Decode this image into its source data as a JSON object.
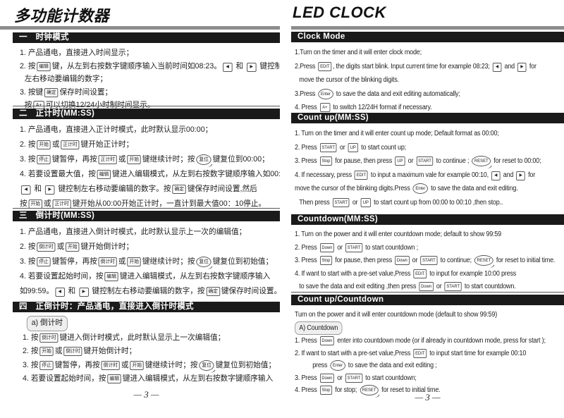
{
  "colors": {
    "header_bar": "#1a1a1a",
    "title_rule": "#8d8d8d",
    "text": "#1e1e1e"
  },
  "left": {
    "title": "多功能计数器",
    "footer": "— 3 —",
    "sections": [
      {
        "header": "一　时钟模式",
        "lines": [
          {
            "segs": [
              {
                "t": "1. 产品通电，直接进入时间显示；"
              }
            ]
          },
          {
            "segs": [
              {
                "t": "2. 按"
              },
              {
                "k": "编辑",
                "n": "key-edit"
              },
              {
                "t": "键，从左到右按数字键顺序输入当前时间如08:23。"
              },
              {
                "k": "◀",
                "n": "key-left",
                "s": "arrow"
              },
              {
                "t": " 和 "
              },
              {
                "k": "▶",
                "n": "key-right",
                "s": "arrow"
              },
              {
                "t": " 键控制"
              }
            ]
          },
          {
            "indent": 1,
            "segs": [
              {
                "t": "左右移动要编辑的数字；"
              }
            ]
          },
          {
            "segs": [
              {
                "t": "3. 按键"
              },
              {
                "k": "确定",
                "n": "key-ok"
              },
              {
                "t": "保存时间设置；"
              }
            ]
          },
          {
            "indent": 1,
            "segs": [
              {
                "t": "按"
              },
              {
                "k": "A+",
                "n": "key-a-plus"
              },
              {
                "t": "可以切换12/24小时制时间显示。"
              }
            ]
          }
        ]
      },
      {
        "header": "二　正计时(MM:SS)",
        "lines": [
          {
            "segs": [
              {
                "t": "1. 产品通电，直接进入正计时模式，此时默认显示00:00；"
              }
            ]
          },
          {
            "segs": [
              {
                "t": "2. 按"
              },
              {
                "k": "开始",
                "n": "key-start"
              },
              {
                "t": "或"
              },
              {
                "k": "正计时",
                "n": "key-count-up"
              },
              {
                "t": "键开始正计时；"
              }
            ]
          },
          {
            "segs": [
              {
                "t": "3. 按"
              },
              {
                "k": "停止",
                "n": "key-stop"
              },
              {
                "t": "键暂停，再按"
              },
              {
                "k": "正计时",
                "n": "key-count-up"
              },
              {
                "t": "或"
              },
              {
                "k": "开始",
                "n": "key-start"
              },
              {
                "t": "键继续计时；按"
              },
              {
                "k": "复位",
                "n": "key-reset",
                "s": "reset"
              },
              {
                "t": "键复位到00:00；"
              }
            ]
          },
          {
            "segs": [
              {
                "t": "4. 若要设置最大值，按"
              },
              {
                "k": "编辑",
                "n": "key-edit"
              },
              {
                "t": "键进入编辑模式，从左到右按数字键顺序输入如00:10。"
              }
            ]
          },
          {
            "segs": [
              {
                "k": "◀",
                "n": "key-left",
                "s": "arrow"
              },
              {
                "t": " 和 "
              },
              {
                "k": "▶",
                "n": "key-right",
                "s": "arrow"
              },
              {
                "t": " 键控制左右移动要编辑的数字。按"
              },
              {
                "k": "确定",
                "n": "key-ok"
              },
              {
                "t": "键保存时间设置,然后"
              }
            ]
          },
          {
            "segs": [
              {
                "t": "按"
              },
              {
                "k": "开始",
                "n": "key-start"
              },
              {
                "t": "或"
              },
              {
                "k": "正计时",
                "n": "key-count-up"
              },
              {
                "t": "键开始从00:00开始正计时，一直计到最大值00：10停止。"
              }
            ]
          }
        ]
      },
      {
        "header": "三　倒计时(MM:SS)",
        "lines": [
          {
            "segs": [
              {
                "t": "1. 产品通电，直接进入倒计时模式，此时默认显示上一次的编辑值；"
              }
            ]
          },
          {
            "segs": [
              {
                "t": "2. 按"
              },
              {
                "k": "倒计时",
                "n": "key-countdown"
              },
              {
                "t": "或"
              },
              {
                "k": "开始",
                "n": "key-start"
              },
              {
                "t": "键开始倒计时；"
              }
            ]
          },
          {
            "segs": [
              {
                "t": "3. 按"
              },
              {
                "k": "停止",
                "n": "key-stop"
              },
              {
                "t": "键暂停，再按"
              },
              {
                "k": "倒计时",
                "n": "key-countdown"
              },
              {
                "t": "或"
              },
              {
                "k": "开始",
                "n": "key-start"
              },
              {
                "t": "键继续计时；按"
              },
              {
                "k": "复位",
                "n": "key-reset",
                "s": "reset"
              },
              {
                "t": "键复位到初始值；"
              }
            ]
          },
          {
            "segs": [
              {
                "t": "4. 若要设置起始时间，按"
              },
              {
                "k": "编辑",
                "n": "key-edit"
              },
              {
                "t": "键进入编辑模式，从左到右按数字键顺序输入"
              }
            ]
          },
          {
            "segs": [
              {
                "t": "如99:59。"
              },
              {
                "k": "◀",
                "n": "key-left",
                "s": "arrow"
              },
              {
                "t": " 和 "
              },
              {
                "k": "▶",
                "n": "key-right",
                "s": "arrow"
              },
              {
                "t": " 键控制左右移动要编辑的数字，按"
              },
              {
                "k": "确定",
                "n": "key-ok"
              },
              {
                "t": "键保存时间设置。"
              }
            ]
          }
        ]
      },
      {
        "header": "四　正倒计时：产品通电，直接进入倒计时模式",
        "lines": [
          {
            "sub": "a) 倒计时"
          },
          {
            "segs": [
              {
                "t": "1. 按"
              },
              {
                "k": "倒计时",
                "n": "key-countdown"
              },
              {
                "t": "键进入倒计时模式，此时默认显示上一次编辑值；"
              }
            ]
          },
          {
            "segs": [
              {
                "t": "2. 按"
              },
              {
                "k": "开始",
                "n": "key-start"
              },
              {
                "t": "或"
              },
              {
                "k": "倒计时",
                "n": "key-countdown"
              },
              {
                "t": "键开始倒计时；"
              }
            ]
          },
          {
            "segs": [
              {
                "t": "3. 按"
              },
              {
                "k": "停止",
                "n": "key-stop"
              },
              {
                "t": "键暂停，再按"
              },
              {
                "k": "倒计时",
                "n": "key-countdown"
              },
              {
                "t": "或"
              },
              {
                "k": "开始",
                "n": "key-start"
              },
              {
                "t": "键继续计时；按"
              },
              {
                "k": "复位",
                "n": "key-reset",
                "s": "reset"
              },
              {
                "t": "键复位到初始值；"
              }
            ]
          },
          {
            "segs": [
              {
                "t": "4.  若要设置起始时间，按"
              },
              {
                "k": "编辑",
                "n": "key-edit"
              },
              {
                "t": "键进入编辑模式，从左到右按数字键顺序输入"
              }
            ]
          }
        ]
      }
    ]
  },
  "right": {
    "title": "LED CLOCK",
    "footer": "— 3 —",
    "sections": [
      {
        "header": "Clock Mode",
        "lines": [
          {
            "segs": [
              {
                "t": "1.Turn on the timer and it will enter clock mode;"
              }
            ]
          },
          {
            "segs": [
              {
                "t": "2.Press "
              },
              {
                "k": "EDIT",
                "n": "key-edit"
              },
              {
                "t": ", the digits start blink. Input current time for example 08:23; "
              },
              {
                "k": "◀",
                "n": "key-left",
                "s": "arrow"
              },
              {
                "t": " and "
              },
              {
                "k": "▶",
                "n": "key-right",
                "s": "arrow"
              },
              {
                "t": " for"
              }
            ]
          },
          {
            "indent": 1,
            "segs": [
              {
                "t": "move the cursor of the blinking digits."
              }
            ]
          },
          {
            "segs": [
              {
                "t": "3.Press "
              },
              {
                "k": "Enter",
                "n": "key-enter",
                "s": "oval"
              },
              {
                "t": " to save the data and exit editing automatically;"
              }
            ]
          },
          {
            "segs": [
              {
                "t": "4. Press "
              },
              {
                "k": "A+",
                "n": "key-a-plus"
              },
              {
                "t": " to switch 12/24H format if necessary."
              }
            ]
          }
        ]
      },
      {
        "header": "Count up(MM:SS)",
        "lines": [
          {
            "segs": [
              {
                "t": "1. Turn on the timer and it will enter count up mode; Default format as 00:00;"
              }
            ]
          },
          {
            "segs": [
              {
                "t": "2. Press "
              },
              {
                "k": "START",
                "n": "key-start"
              },
              {
                "t": " or "
              },
              {
                "k": "UP",
                "n": "key-up"
              },
              {
                "t": " to start count up;"
              }
            ]
          },
          {
            "segs": [
              {
                "t": "3. Press "
              },
              {
                "k": "Stop",
                "n": "key-stop"
              },
              {
                "t": " for pause, then press "
              },
              {
                "k": "UP",
                "n": "key-up"
              },
              {
                "t": " or "
              },
              {
                "k": "START",
                "n": "key-start"
              },
              {
                "t": " to continue ; "
              },
              {
                "k": "RESET",
                "n": "key-reset",
                "s": "reset"
              },
              {
                "t": " for reset to 00:00;"
              }
            ]
          },
          {
            "segs": [
              {
                "t": "4. If necessary, press "
              },
              {
                "k": "EDIT",
                "n": "key-edit"
              },
              {
                "t": " to input a maximum vale for example 00:10, "
              },
              {
                "k": "◀",
                "n": "key-left",
                "s": "arrow"
              },
              {
                "t": " and "
              },
              {
                "k": "▶",
                "n": "key-right",
                "s": "arrow"
              },
              {
                "t": " for"
              }
            ]
          },
          {
            "segs": [
              {
                "t": "move the cursor of the blinking digits.Press "
              },
              {
                "k": "Enter",
                "n": "key-enter",
                "s": "oval"
              },
              {
                "t": " to save the data and exit editing."
              }
            ]
          },
          {
            "indent": 1,
            "segs": [
              {
                "t": "Then press "
              },
              {
                "k": "START",
                "n": "key-start"
              },
              {
                "t": " or "
              },
              {
                "k": "UP",
                "n": "key-up"
              },
              {
                "t": " to start  count up from 00:00 to 00:10 ,then stop.."
              }
            ]
          }
        ]
      },
      {
        "header": "Countdown(MM:SS)",
        "lines": [
          {
            "segs": [
              {
                "t": "1. Turn on the power and it will enter countdown mode; default to show 99:59"
              }
            ]
          },
          {
            "segs": [
              {
                "t": "2. Press "
              },
              {
                "k": "Down",
                "n": "key-down"
              },
              {
                "t": " or "
              },
              {
                "k": "START",
                "n": "key-start"
              },
              {
                "t": " to start countdown ;"
              }
            ]
          },
          {
            "segs": [
              {
                "t": "3. Press "
              },
              {
                "k": "Stop",
                "n": "key-stop"
              },
              {
                "t": " for  pause, then press "
              },
              {
                "k": "Down",
                "n": "key-down"
              },
              {
                "t": " or "
              },
              {
                "k": "START",
                "n": "key-start"
              },
              {
                "t": " to continue; "
              },
              {
                "k": "RESET",
                "n": "key-reset",
                "s": "reset"
              },
              {
                "t": " for reset to initial time."
              }
            ]
          },
          {
            "segs": [
              {
                "t": "4. If want to start with a pre-set value,Press "
              },
              {
                "k": "EDIT",
                "n": "key-edit"
              },
              {
                "t": " to input for example 10:00 press"
              }
            ]
          },
          {
            "indent": 1,
            "segs": [
              {
                "t": "to save the data and exit editing ,then press "
              },
              {
                "k": "Down",
                "n": "key-down"
              },
              {
                "t": " or "
              },
              {
                "k": "START",
                "n": "key-start"
              },
              {
                "t": " to start countdown."
              }
            ]
          }
        ]
      },
      {
        "header": "Count up/Countdown",
        "lines": [
          {
            "segs": [
              {
                "t": "Turn on the power and it will enter countdown mode (default to show 99:59)"
              }
            ]
          },
          {
            "sub": "A) Countdown"
          },
          {
            "segs": [
              {
                "t": "1. Press "
              },
              {
                "k": "Down",
                "n": "key-down"
              },
              {
                "t": " enter into countdown mode (or if already in countdown mode, press for start );"
              }
            ]
          },
          {
            "segs": [
              {
                "t": "2. If want to start with a pre-set value,Press "
              },
              {
                "k": "EDIT",
                "n": "key-edit"
              },
              {
                "t": " to input start time for example 00:10"
              }
            ]
          },
          {
            "indent": 2,
            "segs": [
              {
                "t": "press "
              },
              {
                "k": "Enter",
                "n": "key-enter",
                "s": "oval"
              },
              {
                "t": " to save the data and exit editing ;"
              }
            ]
          },
          {
            "segs": [
              {
                "t": "3. Press "
              },
              {
                "k": "Down",
                "n": "key-down"
              },
              {
                "t": " or "
              },
              {
                "k": "START",
                "n": "key-start"
              },
              {
                "t": " to start countdown;"
              }
            ]
          },
          {
            "segs": [
              {
                "t": "4. Press "
              },
              {
                "k": "Stop",
                "n": "key-stop"
              },
              {
                "t": " for stop; "
              },
              {
                "k": "RESET",
                "n": "key-reset",
                "s": "reset"
              },
              {
                "t": " for reset to initial time."
              }
            ]
          }
        ]
      }
    ]
  }
}
